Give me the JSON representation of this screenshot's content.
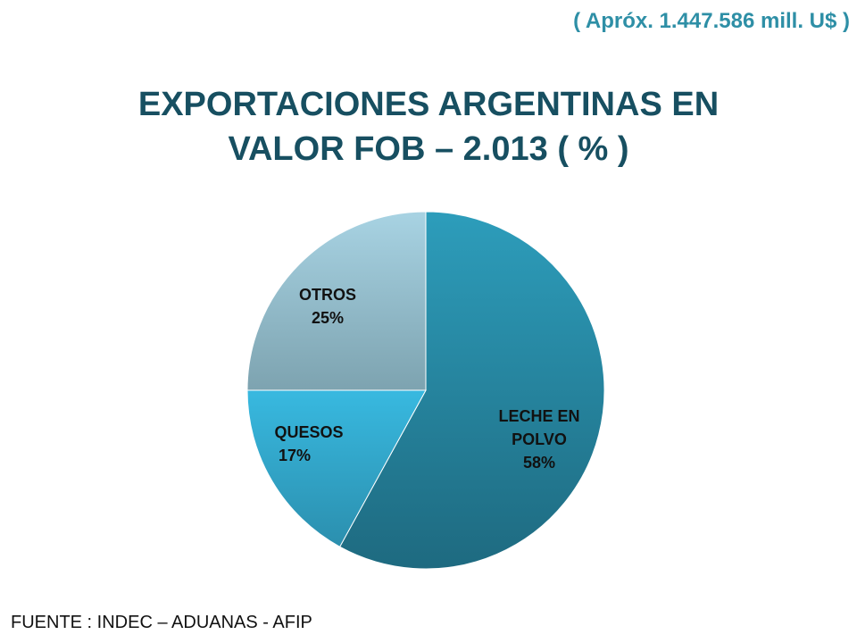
{
  "header": {
    "total_note": "( Apróx. 1.447.586 mill. U$ )",
    "title_line1": "EXPORTACIONES ARGENTINAS EN",
    "title_line2": "VALOR FOB – 2.013 ( % )"
  },
  "chart_data": {
    "type": "pie",
    "title": "EXPORTACIONES ARGENTINAS EN VALOR FOB – 2.013 ( % )",
    "unit": "%",
    "slices": [
      {
        "label_lines": [
          "LECHE EN",
          "POLVO",
          "58%"
        ],
        "category": "LECHE EN POLVO",
        "value": 58,
        "color": "#24829b"
      },
      {
        "label_lines": [
          "QUESOS",
          "17%"
        ],
        "category": "QUESOS",
        "value": 17,
        "color": "#33acd2"
      },
      {
        "label_lines": [
          "OTROS",
          "25%"
        ],
        "category": "OTROS",
        "value": 25,
        "color": "#8bb7c9"
      }
    ]
  },
  "footer": {
    "source": "FUENTE : INDEC – ADUANAS - AFIP"
  }
}
